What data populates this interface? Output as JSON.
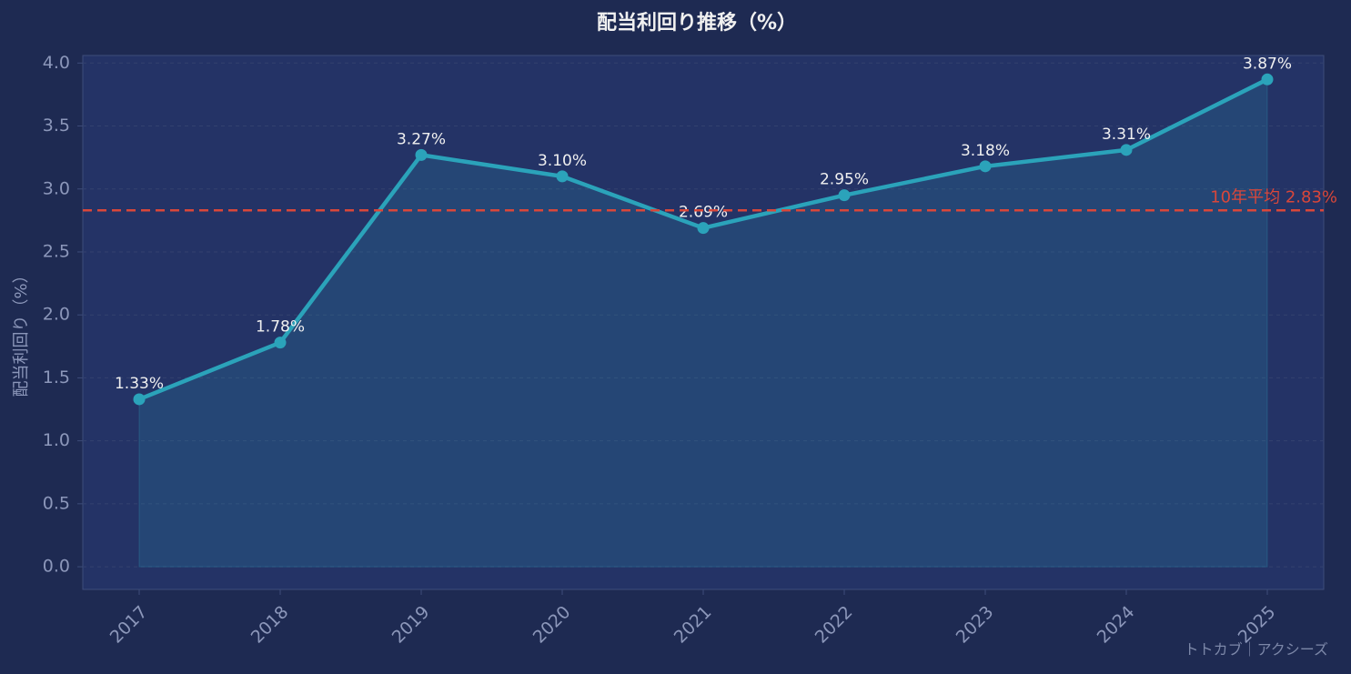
{
  "chart_data": {
    "type": "line",
    "title": "配当利回り推移（%）",
    "y_label": "配当利回り（%）",
    "x": [
      2017,
      2018,
      2019,
      2020,
      2021,
      2022,
      2023,
      2024,
      2025
    ],
    "series": [
      {
        "name": "配当利回り",
        "color": "#2ba3ba",
        "values": [
          1.33,
          1.78,
          3.27,
          3.1,
          2.69,
          2.95,
          3.18,
          3.31,
          3.87
        ],
        "value_labels": [
          "1.33%",
          "1.78%",
          "3.27%",
          "3.10%",
          "2.69%",
          "2.95%",
          "3.18%",
          "3.31%",
          "3.87%"
        ]
      }
    ],
    "reference_line": {
      "value": 2.83,
      "label": "10年平均 2.83%",
      "color": "#d9473a"
    },
    "xlim": [
      2016.6,
      2025.4
    ],
    "xticks": [
      2017,
      2018,
      2019,
      2020,
      2021,
      2022,
      2023,
      2024,
      2025
    ],
    "ylim": [
      -0.18,
      4.06
    ],
    "yticks": [
      {
        "value": 0,
        "label": "0.0"
      },
      0.5,
      {
        "value": 1,
        "label": "1.0"
      },
      1.5,
      {
        "value": 2,
        "label": "2.0"
      },
      2.5,
      {
        "value": 3,
        "label": "3.0"
      },
      3.5,
      {
        "value": 4,
        "label": "4.0"
      }
    ],
    "grid": true,
    "watermark": "トトカブ｜アクシーズ"
  }
}
